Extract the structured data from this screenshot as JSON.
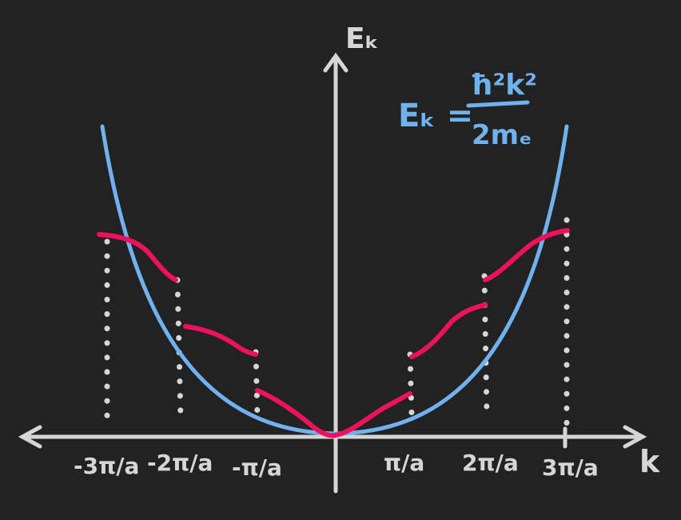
{
  "labels": {
    "y_axis": "Eₖ",
    "x_axis": "k",
    "formula_lhs": "Eₖ =",
    "formula_num": "ħ²k²",
    "formula_den": "2mₑ",
    "ticks": [
      "-3π/a",
      "-2π/a",
      "-π/a",
      "π/a",
      "2π/a",
      "3π/a"
    ]
  },
  "colors": {
    "background": "#222222",
    "axes": "#d6d6d6",
    "free_electron": "#6fb2ee",
    "bands": "#f0115e",
    "formula": "#6fb2ee"
  }
}
